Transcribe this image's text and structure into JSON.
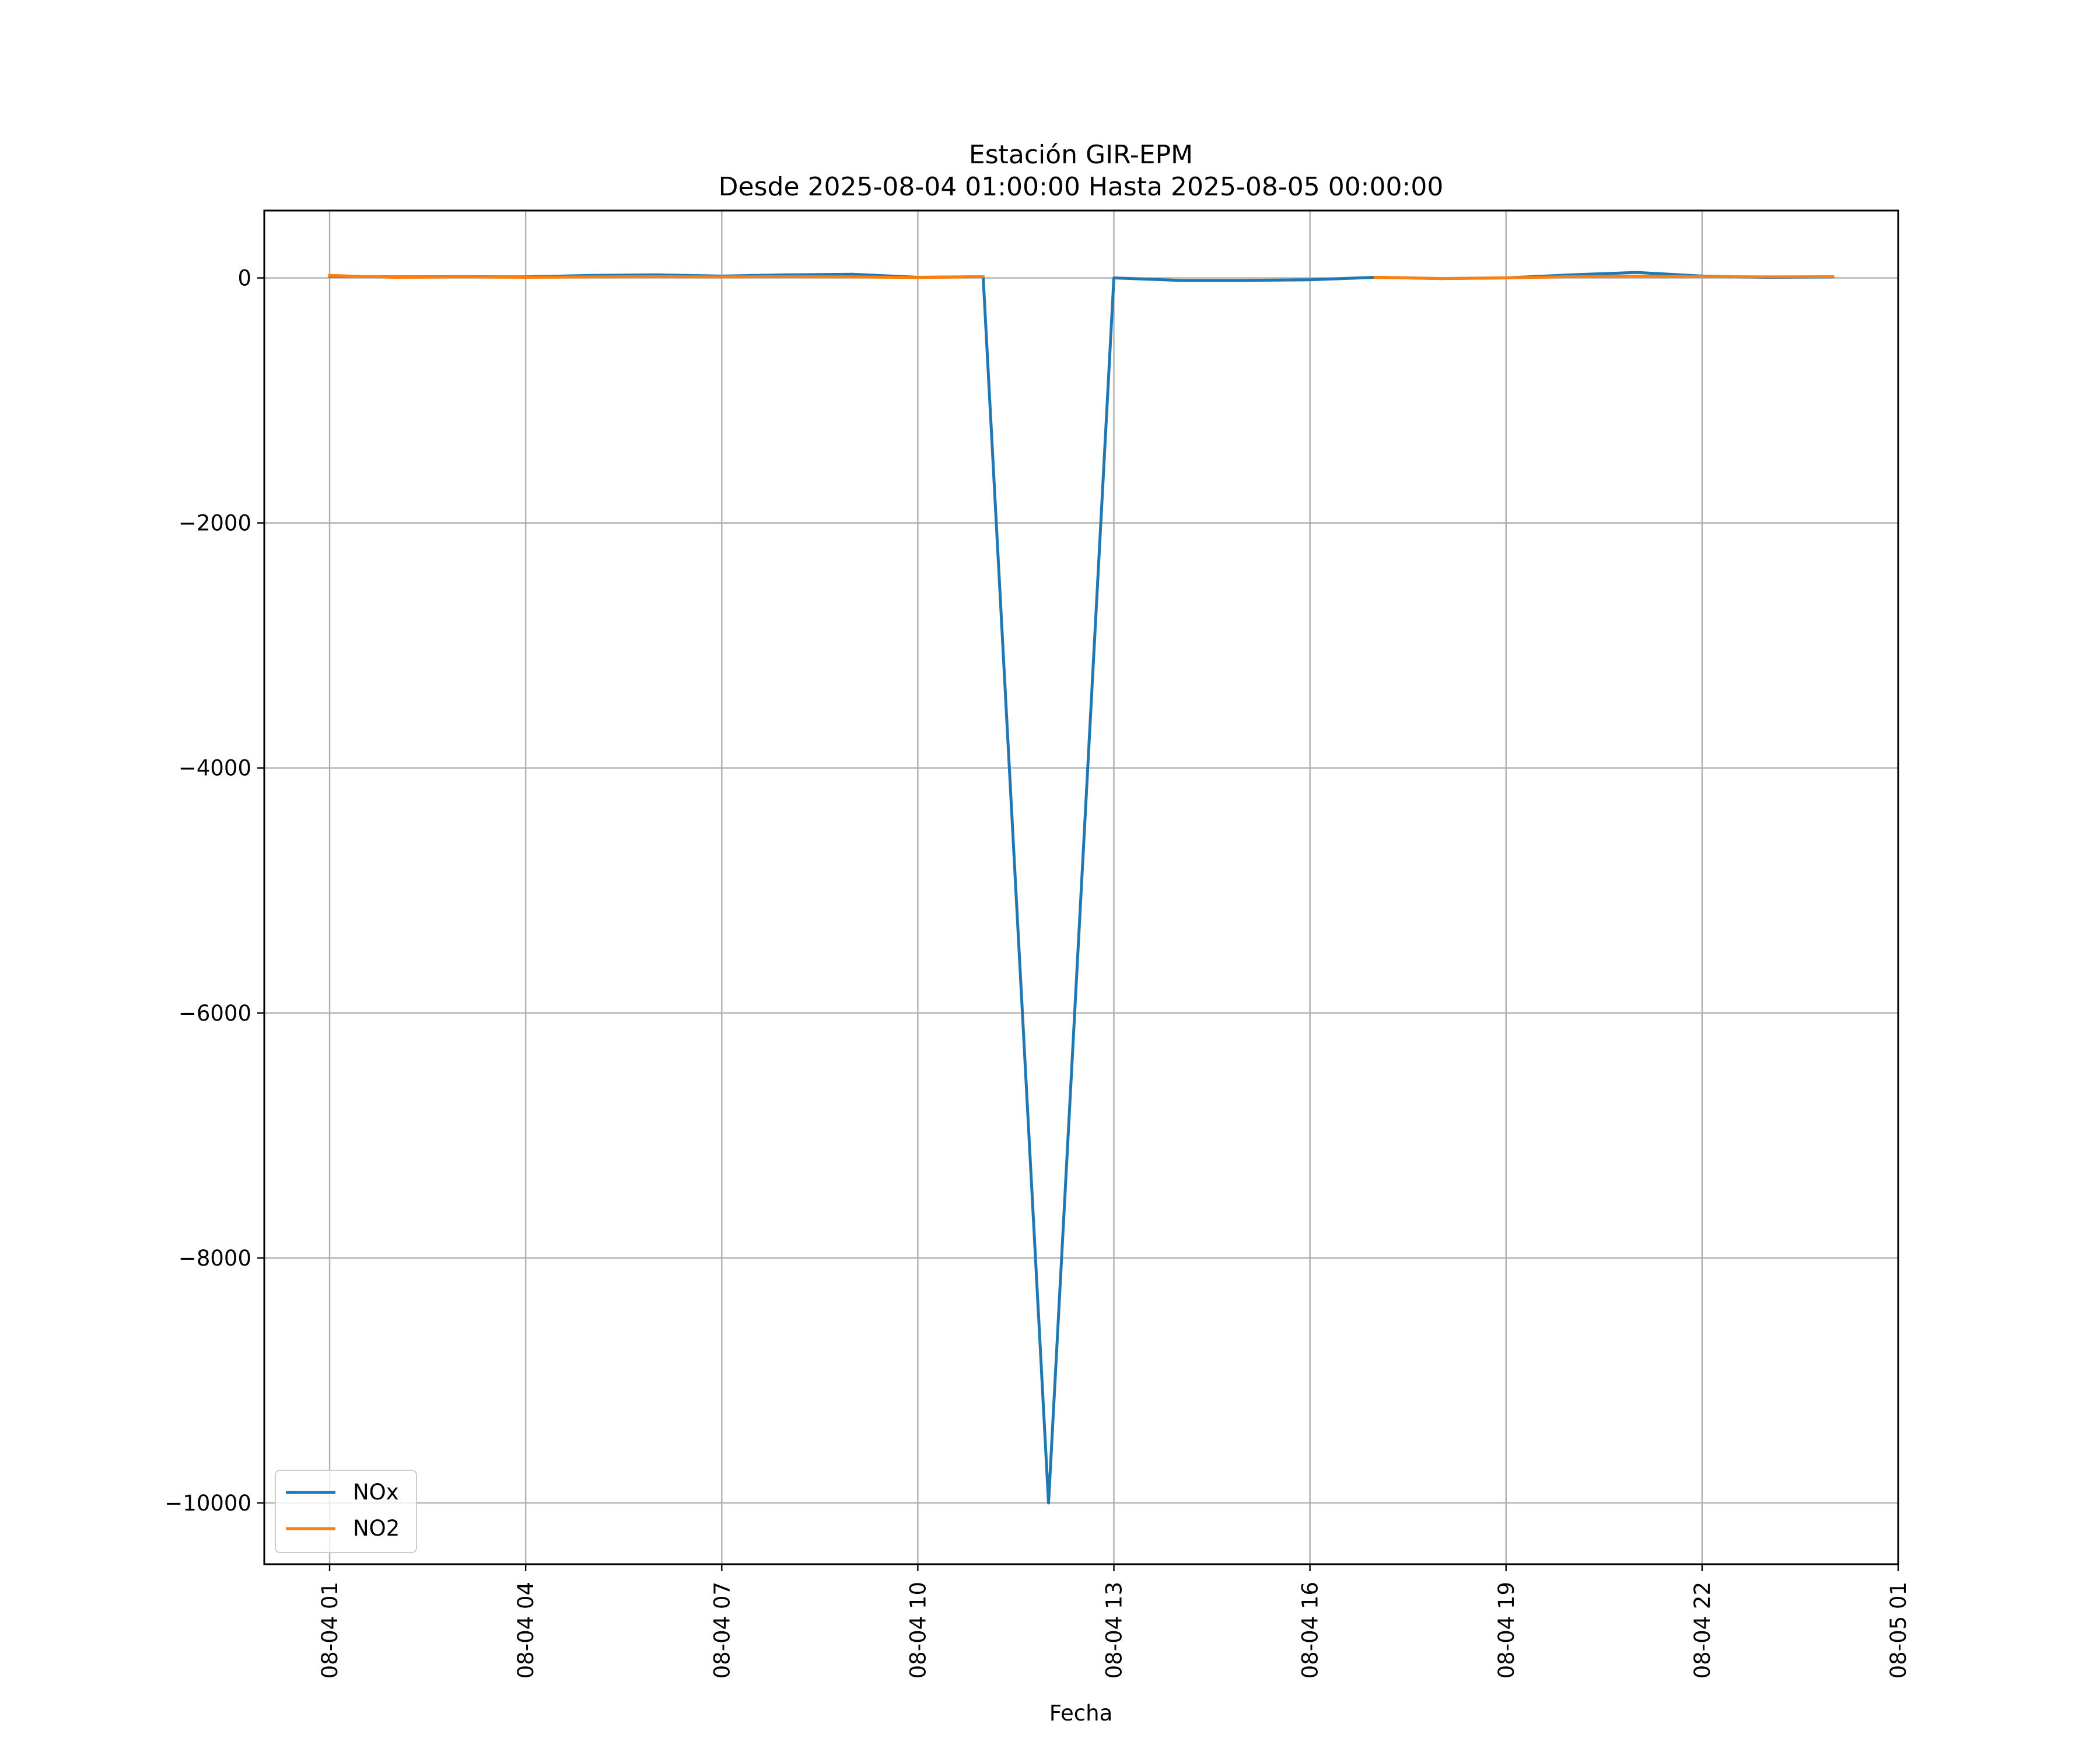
{
  "chart_data": {
    "type": "line",
    "title": "Estación GIR-EPM",
    "subtitle": "Desde 2025-08-04 01:00:00 Hasta 2025-08-05 00:00:00",
    "xlabel": "Fecha",
    "ylabel": "",
    "x_start": "2025-08-04 01:00",
    "x_end": "2025-08-05 01:00",
    "xlim": [
      "2025-08-04 00:00",
      "2025-08-05 01:00"
    ],
    "ylim": [
      -10500,
      550
    ],
    "x_ticks": [
      "08-04 01",
      "08-04 04",
      "08-04 07",
      "08-04 10",
      "08-04 13",
      "08-04 16",
      "08-04 19",
      "08-04 22",
      "08-05 01"
    ],
    "y_ticks": [
      {
        "value": 0,
        "label": "0"
      },
      {
        "value": -2000,
        "label": "−2000"
      },
      {
        "value": -4000,
        "label": "−4000"
      },
      {
        "value": -6000,
        "label": "−6000"
      },
      {
        "value": -8000,
        "label": "−8000"
      },
      {
        "value": -10000,
        "label": "−10000"
      }
    ],
    "grid": true,
    "legend_position": "lower-left",
    "series": [
      {
        "name": "NOx",
        "color": "#1f77b4",
        "points": [
          {
            "x": "2025-08-04 01:00",
            "y": 15
          },
          {
            "x": "2025-08-04 02:00",
            "y": 8
          },
          {
            "x": "2025-08-04 03:00",
            "y": 10
          },
          {
            "x": "2025-08-04 04:00",
            "y": 8
          },
          {
            "x": "2025-08-04 05:00",
            "y": 20
          },
          {
            "x": "2025-08-04 06:00",
            "y": 25
          },
          {
            "x": "2025-08-04 07:00",
            "y": 15
          },
          {
            "x": "2025-08-04 08:00",
            "y": 25
          },
          {
            "x": "2025-08-04 09:00",
            "y": 30
          },
          {
            "x": "2025-08-04 10:00",
            "y": 5
          },
          {
            "x": "2025-08-04 11:00",
            "y": 10
          },
          {
            "x": "2025-08-04 12:00",
            "y": -10000
          },
          {
            "x": "2025-08-04 13:00",
            "y": 0
          },
          {
            "x": "2025-08-04 14:00",
            "y": -20
          },
          {
            "x": "2025-08-04 15:00",
            "y": -20
          },
          {
            "x": "2025-08-04 16:00",
            "y": -15
          },
          {
            "x": "2025-08-04 17:00",
            "y": 5
          },
          {
            "x": "2025-08-04 18:00",
            "y": -5
          },
          {
            "x": "2025-08-04 19:00",
            "y": 0
          },
          {
            "x": "2025-08-04 20:00",
            "y": 25
          },
          {
            "x": "2025-08-04 21:00",
            "y": 45
          },
          {
            "x": "2025-08-04 22:00",
            "y": 15
          },
          {
            "x": "2025-08-04 23:00",
            "y": 5
          },
          {
            "x": "2025-08-05 00:00",
            "y": 8
          }
        ]
      },
      {
        "name": "NO2",
        "color": "#ff7f0e",
        "points": [
          {
            "x": "2025-08-04 01:00",
            "y": 20
          },
          {
            "x": "2025-08-04 02:00",
            "y": 5
          },
          {
            "x": "2025-08-04 03:00",
            "y": 8
          },
          {
            "x": "2025-08-04 04:00",
            "y": 5
          },
          {
            "x": "2025-08-04 05:00",
            "y": 8
          },
          {
            "x": "2025-08-04 06:00",
            "y": 10
          },
          {
            "x": "2025-08-04 07:00",
            "y": 8
          },
          {
            "x": "2025-08-04 08:00",
            "y": 10
          },
          {
            "x": "2025-08-04 09:00",
            "y": 8
          },
          {
            "x": "2025-08-04 10:00",
            "y": 3
          },
          {
            "x": "2025-08-04 11:00",
            "y": 10
          },
          {
            "x": "2025-08-04 12:00",
            "y": null
          },
          {
            "x": "2025-08-04 13:00",
            "y": null
          },
          {
            "x": "2025-08-04 14:00",
            "y": null
          },
          {
            "x": "2025-08-04 15:00",
            "y": null
          },
          {
            "x": "2025-08-04 16:00",
            "y": null
          },
          {
            "x": "2025-08-04 17:00",
            "y": 5
          },
          {
            "x": "2025-08-04 18:00",
            "y": -5
          },
          {
            "x": "2025-08-04 19:00",
            "y": 0
          },
          {
            "x": "2025-08-04 20:00",
            "y": 10
          },
          {
            "x": "2025-08-04 21:00",
            "y": 15
          },
          {
            "x": "2025-08-04 22:00",
            "y": 10
          },
          {
            "x": "2025-08-04 23:00",
            "y": 8
          },
          {
            "x": "2025-08-05 00:00",
            "y": 10
          }
        ]
      }
    ]
  }
}
